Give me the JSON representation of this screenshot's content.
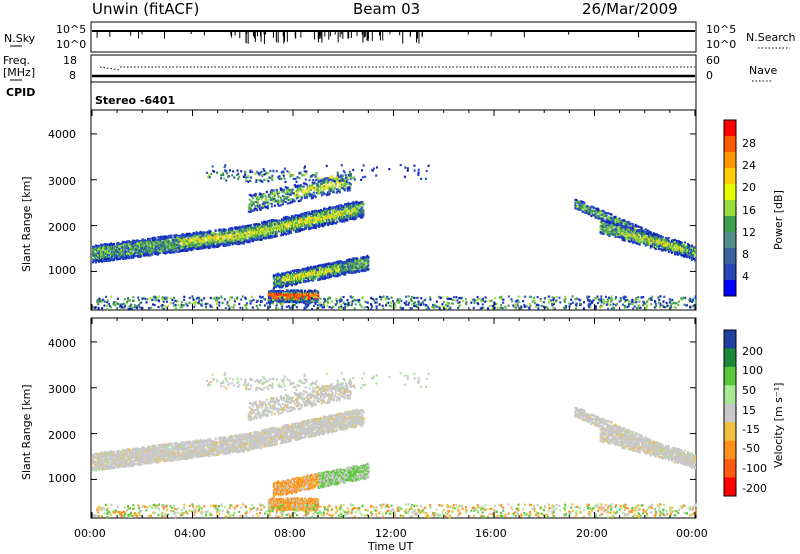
{
  "header": {
    "station": "Unwin (fitACF)",
    "beam": "Beam 03",
    "date": "26/Mar/2009"
  },
  "top_panels": {
    "nsky_label": "N.Sky",
    "nsky_ticks": [
      "10^5",
      "10^0"
    ],
    "nsearch_label": "N.Search",
    "nsearch_ticks": [
      "10^5",
      "10^0"
    ],
    "freq_label": "Freq.",
    "freq_unit": "[MHz]",
    "freq_ticks": [
      "18",
      "8"
    ],
    "nave_label": "Nave",
    "nave_ticks": [
      "60",
      "0"
    ],
    "cpid_label": "CPID",
    "cpid_value": "Stereo -6401"
  },
  "chart_data": [
    {
      "type": "heatmap",
      "name": "power",
      "ylabel": "Slant Range [km]",
      "xlabel": "",
      "yticks": [
        "4000",
        "3000",
        "2000",
        "1000"
      ],
      "ylim": [
        180,
        4500
      ],
      "xlim_hours": [
        0,
        24
      ],
      "colorbar_label": "Power [dB]",
      "colorbar_ticks": [
        "28",
        "24",
        "20",
        "16",
        "12",
        "8",
        "4"
      ],
      "colorbar_colors": [
        "#ff0000",
        "#ff5a00",
        "#ff9500",
        "#ffcd00",
        "#e6ff00",
        "#9bdc3c",
        "#3ca050",
        "#508c8c",
        "#3c64a0",
        "#2846b4",
        "#0000ff"
      ]
    },
    {
      "type": "heatmap",
      "name": "velocity",
      "ylabel": "Slant Range [km]",
      "xlabel": "Time UT",
      "yticks": [
        "4000",
        "3000",
        "2000",
        "1000"
      ],
      "ylim": [
        180,
        4500
      ],
      "xlim_hours": [
        0,
        24
      ],
      "xticks": [
        "00:00",
        "04:00",
        "08:00",
        "12:00",
        "16:00",
        "20:00",
        "00:00"
      ],
      "colorbar_label": "Velocity [m s⁻¹]",
      "colorbar_ticks": [
        "200",
        "100",
        "50",
        "15",
        "-15",
        "-50",
        "-100",
        "-200"
      ],
      "colorbar_colors": [
        "#2040a0",
        "#1a8a3a",
        "#5ac83a",
        "#a8e890",
        "#c8c8c8",
        "#f0c040",
        "#ff9020",
        "#ff5a10",
        "#ff0000"
      ]
    }
  ],
  "colors": {
    "power_blue": "#1e3cc8",
    "power_green": "#4caf50",
    "power_yellow": "#e6e632",
    "power_orange": "#ff8c00",
    "power_red": "#ff2800",
    "vel_gray": "#c8c8c8",
    "vel_orange": "#ff9020",
    "vel_green": "#5ac83a"
  }
}
